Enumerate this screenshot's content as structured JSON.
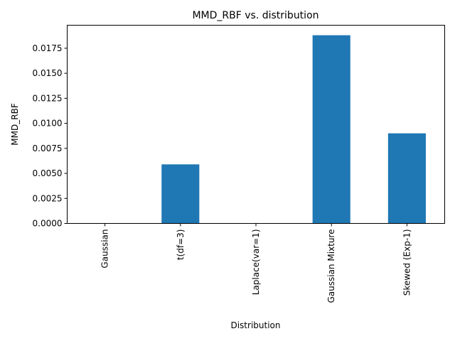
{
  "chart_data": {
    "type": "bar",
    "title": "MMD_RBF vs. distribution",
    "xlabel": "Distribution",
    "ylabel": "MMD_RBF",
    "categories": [
      "Gaussian",
      "t(df=3)",
      "Laplace(var=1)",
      "Gaussian Mixture",
      "Skewed (Exp-1)"
    ],
    "values": [
      0.0,
      0.0059,
      0.0,
      0.0188,
      0.009
    ],
    "ylim": [
      0,
      0.0198
    ],
    "yticks": [
      0.0,
      0.0025,
      0.005,
      0.0075,
      0.01,
      0.0125,
      0.015,
      0.0175
    ],
    "ytick_labels": [
      "0.0000",
      "0.0025",
      "0.0050",
      "0.0075",
      "0.0100",
      "0.0125",
      "0.0150",
      "0.0175"
    ],
    "bar_color": "#1f77b4",
    "grid": false,
    "legend": "none"
  }
}
